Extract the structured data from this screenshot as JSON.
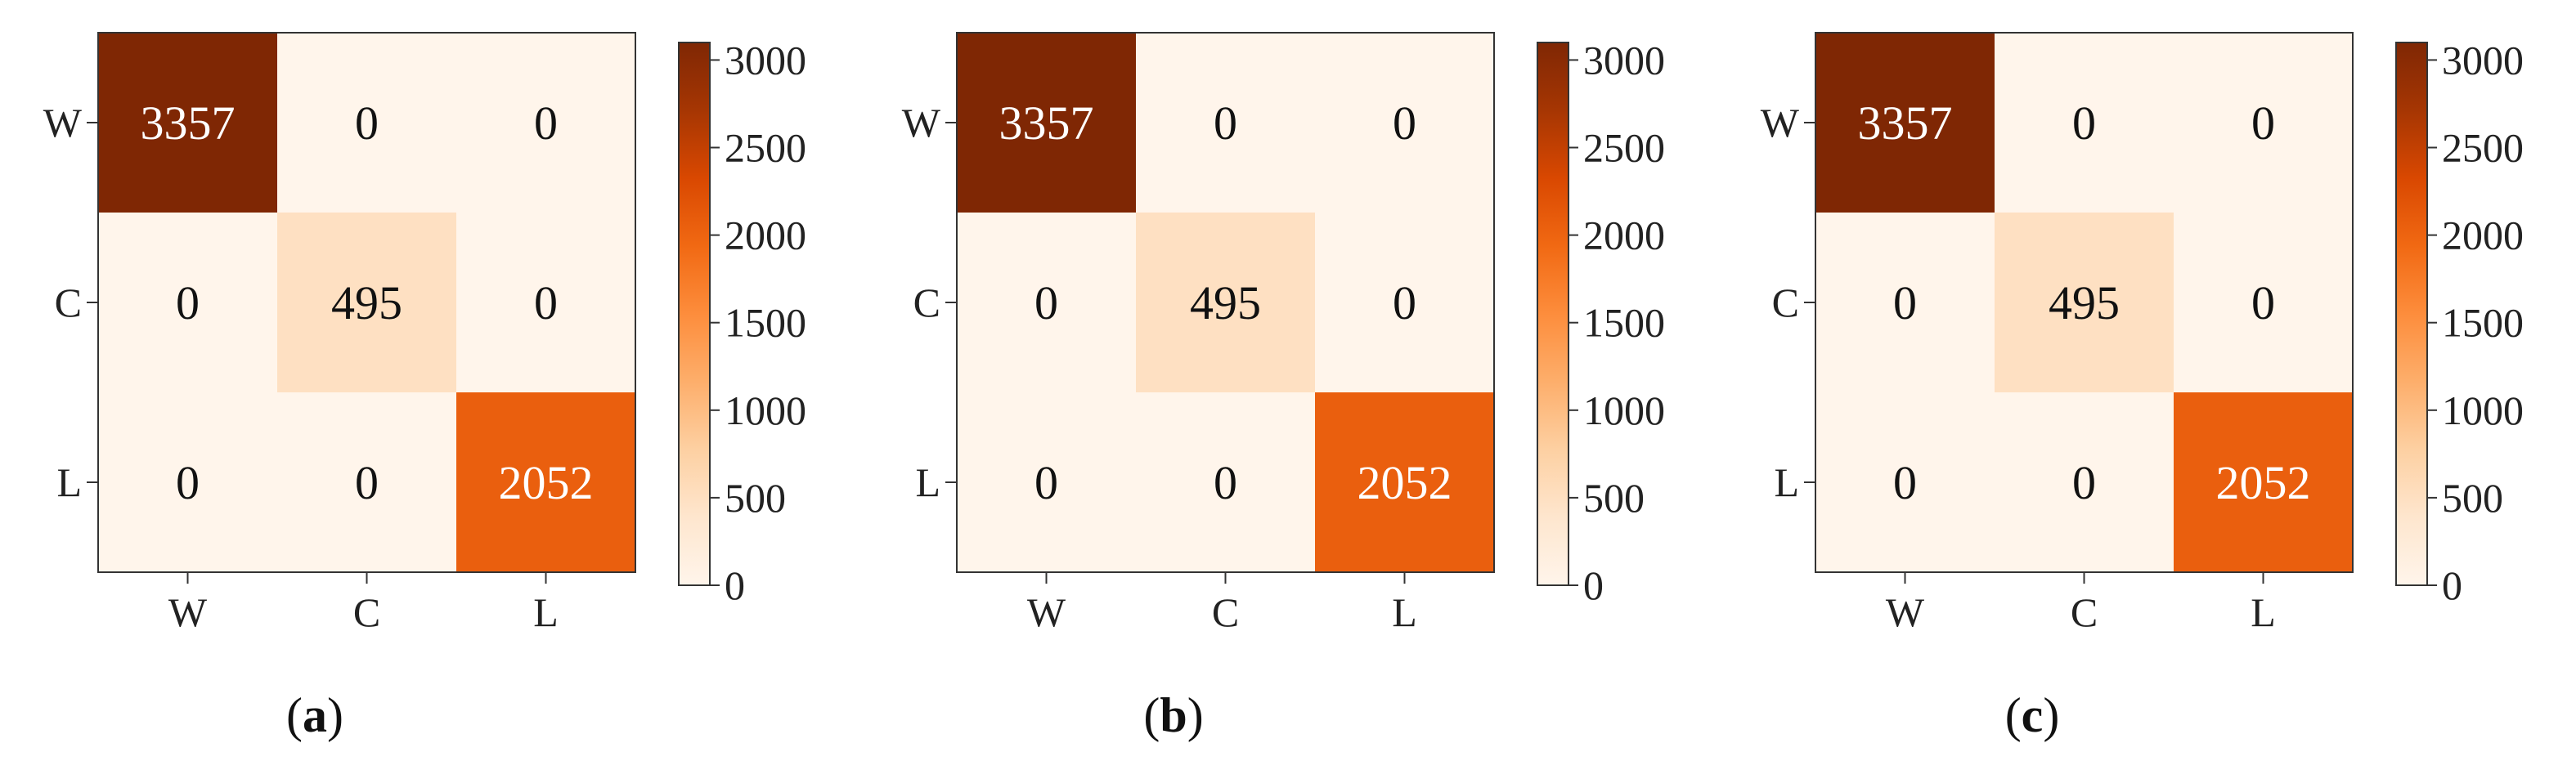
{
  "chart_data": [
    {
      "type": "heatmap",
      "panel_label": "a",
      "x_categories": [
        "W",
        "C",
        "L"
      ],
      "y_categories": [
        "W",
        "C",
        "L"
      ],
      "values": [
        [
          3357,
          0,
          0
        ],
        [
          0,
          495,
          0
        ],
        [
          0,
          0,
          2052
        ]
      ],
      "colorbar": {
        "ticks": [
          0,
          500,
          1000,
          1500,
          2000,
          2500,
          3000
        ],
        "range": [
          0,
          3100
        ]
      },
      "colormap": [
        "#fff5eb",
        "#fee6ce",
        "#fdd0a2",
        "#fdae6b",
        "#fd8d3c",
        "#f16913",
        "#d94801",
        "#a63603",
        "#7f2704"
      ]
    },
    {
      "type": "heatmap",
      "panel_label": "b",
      "x_categories": [
        "W",
        "C",
        "L"
      ],
      "y_categories": [
        "W",
        "C",
        "L"
      ],
      "values": [
        [
          3357,
          0,
          0
        ],
        [
          0,
          495,
          0
        ],
        [
          0,
          0,
          2052
        ]
      ],
      "colorbar": {
        "ticks": [
          0,
          500,
          1000,
          1500,
          2000,
          2500,
          3000
        ],
        "range": [
          0,
          3100
        ]
      },
      "colormap": [
        "#fff5eb",
        "#fee6ce",
        "#fdd0a2",
        "#fdae6b",
        "#fd8d3c",
        "#f16913",
        "#d94801",
        "#a63603",
        "#7f2704"
      ]
    },
    {
      "type": "heatmap",
      "panel_label": "c",
      "x_categories": [
        "W",
        "C",
        "L"
      ],
      "y_categories": [
        "W",
        "C",
        "L"
      ],
      "values": [
        [
          3357,
          0,
          0
        ],
        [
          0,
          495,
          0
        ],
        [
          0,
          0,
          2052
        ]
      ],
      "colorbar": {
        "ticks": [
          0,
          500,
          1000,
          1500,
          2000,
          2500,
          3000
        ],
        "range": [
          0,
          3100
        ]
      },
      "colormap": [
        "#fff5eb",
        "#fee6ce",
        "#fdd0a2",
        "#fdae6b",
        "#fd8d3c",
        "#f16913",
        "#d94801",
        "#a63603",
        "#7f2704"
      ]
    }
  ]
}
